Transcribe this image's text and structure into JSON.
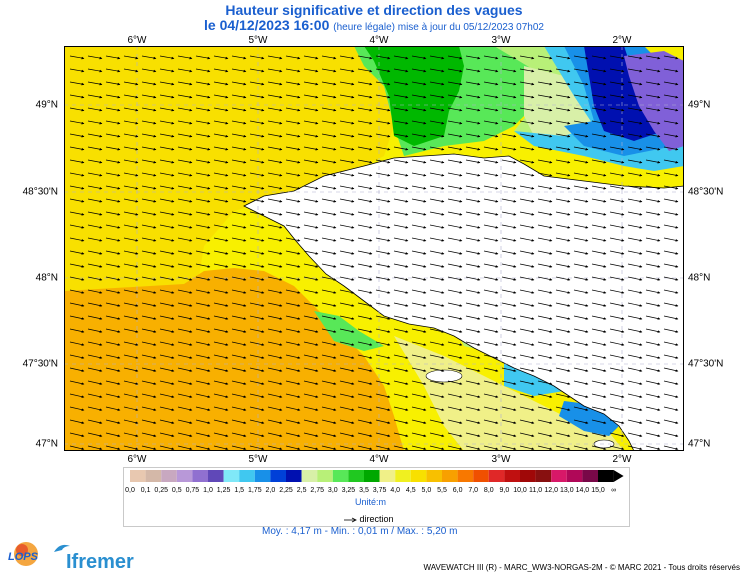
{
  "title": "Hauteur significative et direction des vagues",
  "subtitle_date": "le 04/12/2023 16:00",
  "subtitle_note": "(heure légale) mise à jour du 05/12/2023 07h02",
  "map": {
    "longitude_labels": [
      "6°W",
      "5°W",
      "4°W",
      "3°W",
      "2°W"
    ],
    "latitude_labels": [
      "49°N",
      "48°30'N",
      "48°N",
      "47°30'N",
      "47°N"
    ],
    "land_color": "#ffffff",
    "grid_style": "dashed"
  },
  "legend": {
    "ticks": [
      "0,0",
      "0,1",
      "0,25",
      "0,5",
      "0,75",
      "1,0",
      "1,25",
      "1,5",
      "1,75",
      "2,0",
      "2,25",
      "2,5",
      "2,75",
      "3,0",
      "3,25",
      "3,5",
      "3,75",
      "4,0",
      "4,5",
      "5,0",
      "5,5",
      "6,0",
      "7,0",
      "8,0",
      "9,0",
      "10,0",
      "11,0",
      "12,0",
      "13,0",
      "14,0",
      "15,0",
      "∞"
    ],
    "colors": [
      "#e8c8b0",
      "#d4b8a8",
      "#c8a8c0",
      "#b898d8",
      "#9070d0",
      "#6048b8",
      "#80e8f8",
      "#40c8f0",
      "#1890e8",
      "#0040d8",
      "#0010b0",
      "#d8f0a8",
      "#b8f078",
      "#58e858",
      "#20c820",
      "#00a800",
      "#f0f088",
      "#f0f020",
      "#f8e000",
      "#f8c000",
      "#f8a000",
      "#f87800",
      "#f05000",
      "#e02828",
      "#c01010",
      "#a00808",
      "#881010",
      "#d81868",
      "#b00858",
      "#780848",
      "#000000"
    ],
    "unit": "Unité:m",
    "direction_label": "direction",
    "stats": "Moy. : 4,17 m   -   Min. : 0,01 m / Max. : 5,20 m"
  },
  "footer": "WAVEWATCH III (R) - MARC_WW3-NORGAS-2M - © MARC 2021 - Tous droits réservés",
  "logos": {
    "lops": "LOPS",
    "ifremer": "Ifremer"
  }
}
